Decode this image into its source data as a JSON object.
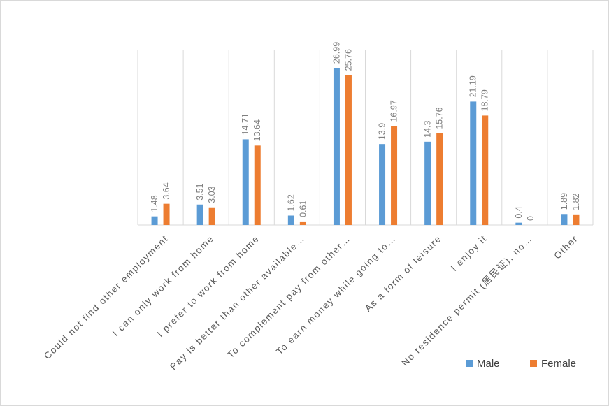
{
  "chart_data": {
    "type": "bar",
    "categories": [
      "Could not find other employment",
      "I can only work from home",
      "I prefer to work from home",
      "Pay is better than other available…",
      "To complement pay from other…",
      "To earn money while going to…",
      "As a form of leisure",
      "I enjoy it",
      "No residence permit (居民证), no…",
      "Other"
    ],
    "series": [
      {
        "name": "Male",
        "color": "#5b9bd5",
        "values": [
          1.48,
          3.51,
          14.71,
          1.62,
          26.99,
          13.9,
          14.3,
          21.19,
          0.4,
          1.89
        ],
        "labels": [
          "1.48",
          "3.51",
          "14.71",
          "1.62",
          "26.99",
          "13.9",
          "14.3",
          "21.19",
          "0.4",
          "1.89"
        ]
      },
      {
        "name": "Female",
        "color": "#ed7d31",
        "values": [
          3.64,
          3.03,
          13.64,
          0.61,
          25.76,
          16.97,
          15.76,
          18.79,
          0,
          1.82
        ],
        "labels": [
          "3.64",
          "3.03",
          "13.64",
          "0.61",
          "25.76",
          "16.97",
          "15.76",
          "18.79",
          "0",
          "1.82"
        ]
      }
    ],
    "ylim": [
      0,
      30
    ],
    "grid": "vertical category separators",
    "legend_position": "bottom-right",
    "title": "",
    "xlabel": "",
    "ylabel": ""
  }
}
